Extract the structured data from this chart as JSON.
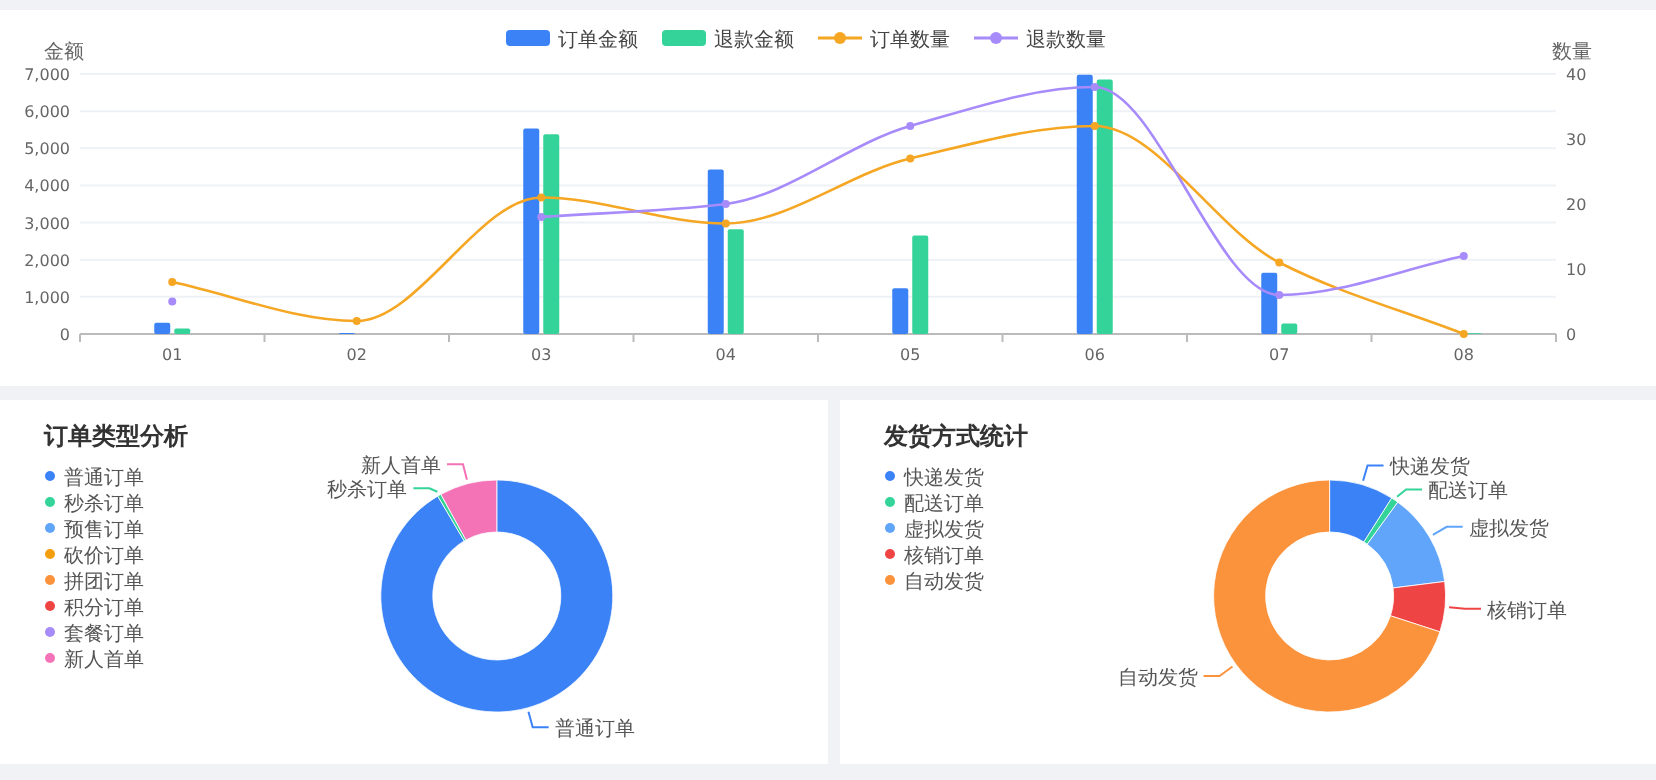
{
  "chart_data": [
    {
      "type": "bar",
      "categories": [
        "01",
        "02",
        "03",
        "04",
        "05",
        "06",
        "07",
        "08"
      ],
      "ylabel": "金额",
      "y2label": "数量",
      "legend": "top",
      "grid": "y",
      "marker": "circle",
      "ylim": [
        0,
        7000
      ],
      "yticks": [
        0,
        {
          "value": 1000,
          "label": "1,000"
        },
        {
          "value": 2000,
          "label": "2,000"
        },
        {
          "value": 3000,
          "label": "3,000"
        },
        {
          "value": 4000,
          "label": "4,000"
        },
        {
          "value": 5000,
          "label": "5,000"
        },
        {
          "value": 6000,
          "label": "6,000"
        },
        {
          "value": 7000,
          "label": "7,000"
        }
      ],
      "y2lim": [
        0,
        40
      ],
      "y2ticks": [
        0,
        10,
        20,
        30,
        40
      ],
      "series": [
        {
          "name": "订单金额",
          "type": "bar",
          "color": "#3b82f6",
          "values": [
            300,
            30,
            5530,
            4430,
            1230,
            6980,
            1650,
            0
          ]
        },
        {
          "name": "退款金额",
          "type": "bar",
          "color": "#34d399",
          "values": [
            150,
            0,
            5380,
            2820,
            2650,
            6850,
            280,
            20
          ]
        },
        {
          "name": "订单数量",
          "type": "line",
          "axis": "y2",
          "color": "#f5a623",
          "values": [
            8,
            2,
            21,
            17,
            27,
            32,
            11,
            0
          ]
        },
        {
          "name": "退款数量",
          "type": "line",
          "axis": "y2",
          "color": "#a78bfa",
          "values": [
            5,
            null,
            18,
            20,
            32,
            38,
            6,
            12
          ]
        }
      ]
    },
    {
      "type": "donut",
      "title": "订单类型分析",
      "legend": "left",
      "categories": [
        "普通订单",
        "秒杀订单",
        "预售订单",
        "砍价订单",
        "拼团订单",
        "积分订单",
        "套餐订单",
        "新人首单"
      ],
      "values": [
        91.5,
        0.5,
        0,
        0,
        0,
        0,
        0,
        8
      ],
      "colors": [
        "#3b82f6",
        "#34d399",
        "#60a5fa",
        "#f59e0b",
        "#fb923c",
        "#ef4444",
        "#a78bfa",
        "#f472b6"
      ]
    },
    {
      "type": "donut",
      "title": "发货方式统计",
      "legend": "left",
      "categories": [
        "快递发货",
        "配送订单",
        "虚拟发货",
        "核销订单",
        "自动发货"
      ],
      "values": [
        9,
        1,
        13,
        7,
        70
      ],
      "colors": [
        "#3b82f6",
        "#34d399",
        "#60a5fa",
        "#ef4444",
        "#fb923c"
      ]
    }
  ]
}
